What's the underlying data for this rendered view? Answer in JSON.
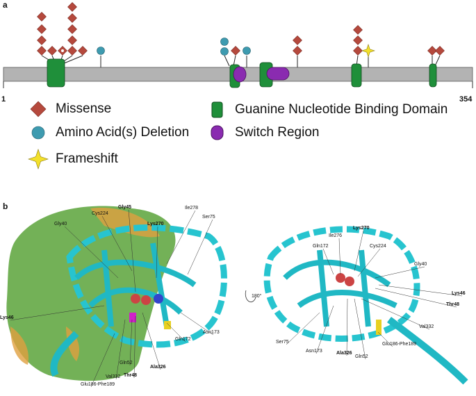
{
  "panel_a": {
    "label": "a",
    "start": 1,
    "end": 354,
    "legend": [
      "Missense",
      "Amino Acid(s) Deletion",
      "Frameshift",
      "Guanine Nucleotide Binding Domain",
      "Switch Region"
    ]
  },
  "panel_b": {
    "label": "b",
    "rotation": "180°",
    "left_labels": [
      "Gly40",
      "Cys224",
      "Gly45",
      "Lys270",
      "Ile278",
      "Ser75",
      "Lys46",
      "Asn173",
      "Gln172",
      "Ala326",
      "Thr48",
      "Gln52",
      "Val332",
      "Glu186-Phe189"
    ],
    "right_labels": [
      "Lys270",
      "Ile276",
      "Gln172",
      "Cys224",
      "Gly40",
      "Lys46",
      "Thr48",
      "Val332",
      "Ser75",
      "Asn173",
      "Ala326",
      "Gln52",
      "Glu186-Phe189"
    ]
  }
}
